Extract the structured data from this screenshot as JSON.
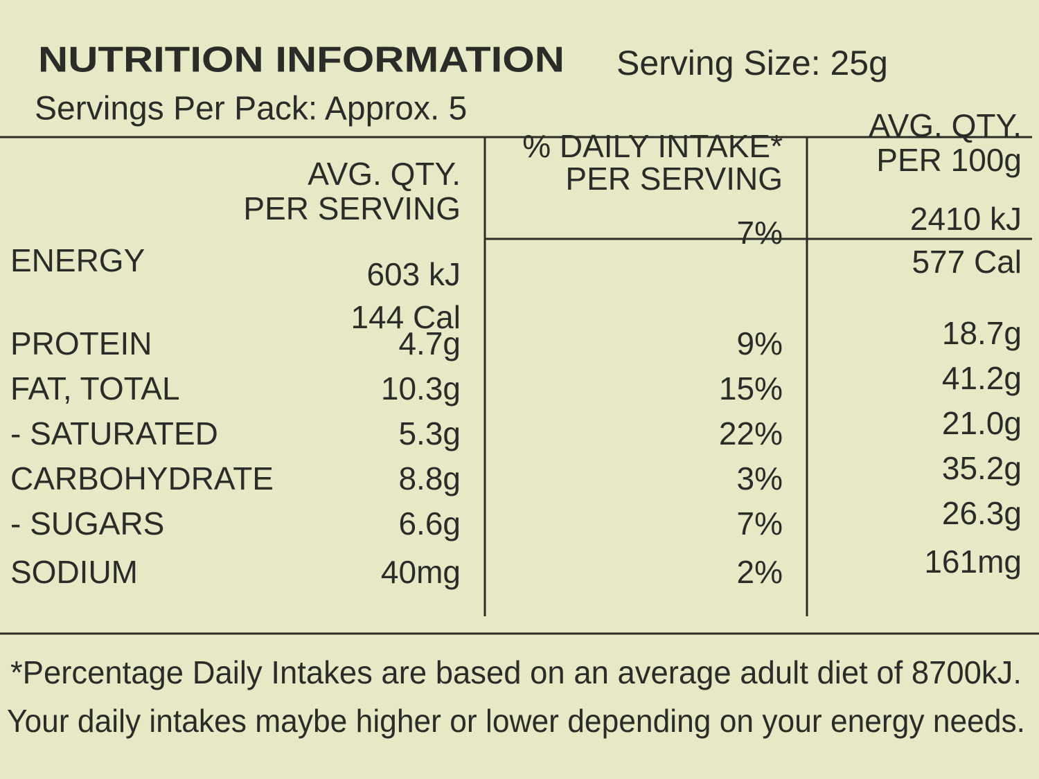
{
  "header": {
    "title": "NUTRITION INFORMATION",
    "serving_size": "Serving Size: 25g",
    "servings_per_pack": "Servings Per Pack: Approx. 5"
  },
  "table": {
    "columns": [
      [
        "AVG. QTY.",
        "PER SERVING"
      ],
      [
        "% DAILY INTAKE*",
        "PER SERVING"
      ],
      [
        "AVG. QTY.",
        "PER 100g"
      ]
    ],
    "rows": [
      {
        "label": "ENERGY",
        "per_serving": [
          "603 kJ",
          "144 Cal"
        ],
        "daily_intake": "7%",
        "per_100g": [
          "2410 kJ",
          "577 Cal"
        ]
      },
      {
        "label": "PROTEIN",
        "per_serving": "4.7g",
        "daily_intake": "9%",
        "per_100g": "18.7g"
      },
      {
        "label": "FAT, TOTAL",
        "per_serving": "10.3g",
        "daily_intake": "15%",
        "per_100g": "41.2g"
      },
      {
        "label": "- SATURATED",
        "per_serving": "5.3g",
        "daily_intake": "22%",
        "per_100g": "21.0g"
      },
      {
        "label": "CARBOHYDRATE",
        "per_serving": "8.8g",
        "daily_intake": "3%",
        "per_100g": "35.2g"
      },
      {
        "label": "- SUGARS",
        "per_serving": "6.6g",
        "daily_intake": "7%",
        "per_100g": "26.3g"
      },
      {
        "label": "SODIUM",
        "per_serving": "40mg",
        "daily_intake": "2%",
        "per_100g": "161mg"
      }
    ]
  },
  "footnote": [
    "*Percentage Daily Intakes are based on an average adult diet of 8700kJ.",
    "Your daily intakes maybe higher or lower depending on your energy needs."
  ]
}
